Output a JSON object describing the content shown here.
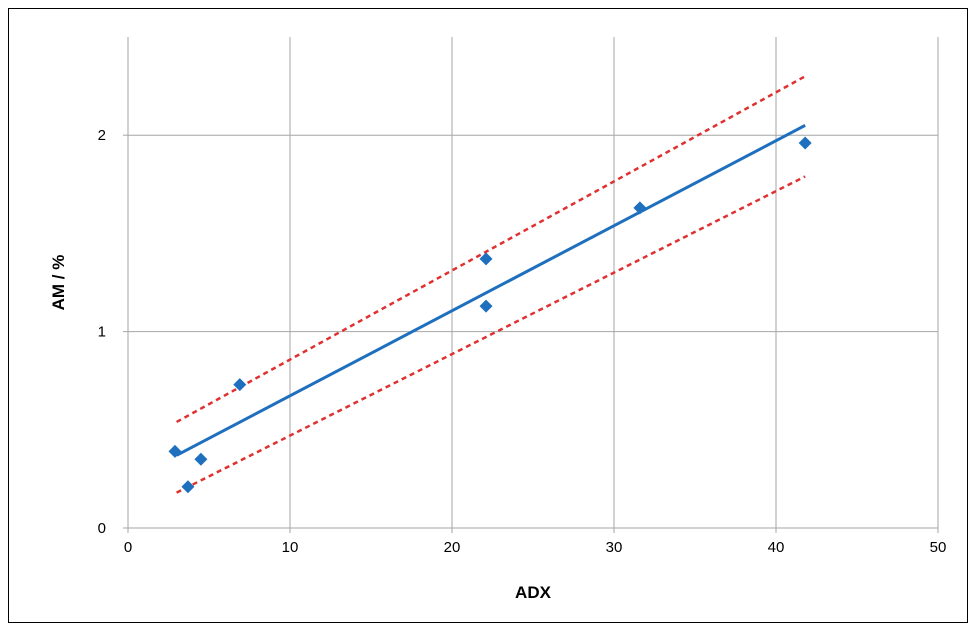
{
  "chart_data": {
    "type": "scatter",
    "title": "",
    "xlabel": "ADX",
    "ylabel": "AM / %",
    "xlim": [
      0,
      50
    ],
    "ylim": [
      0,
      2.5
    ],
    "x_ticks": [
      0,
      10,
      20,
      30,
      40,
      50
    ],
    "y_ticks": [
      0,
      1,
      2
    ],
    "grid": true,
    "series": [
      {
        "kind": "points",
        "marker": "diamond",
        "color": "#1f6fbf",
        "points": [
          {
            "x": 2.9,
            "y": 0.39
          },
          {
            "x": 3.7,
            "y": 0.21
          },
          {
            "x": 4.5,
            "y": 0.35
          },
          {
            "x": 6.9,
            "y": 0.73
          },
          {
            "x": 22.1,
            "y": 1.37
          },
          {
            "x": 22.1,
            "y": 1.13
          },
          {
            "x": 31.6,
            "y": 1.63
          },
          {
            "x": 41.8,
            "y": 1.96
          }
        ]
      },
      {
        "kind": "line",
        "style": "solid",
        "color": "#1f6fbf",
        "points": [
          {
            "x": 3.0,
            "y": 0.37
          },
          {
            "x": 41.8,
            "y": 2.05
          }
        ]
      },
      {
        "kind": "line",
        "style": "dashed",
        "color": "#e03030",
        "points": [
          {
            "x": 3.0,
            "y": 0.54
          },
          {
            "x": 41.8,
            "y": 2.3
          }
        ]
      },
      {
        "kind": "line",
        "style": "dashed",
        "color": "#e03030",
        "points": [
          {
            "x": 3.0,
            "y": 0.18
          },
          {
            "x": 41.8,
            "y": 1.79
          }
        ]
      }
    ]
  }
}
